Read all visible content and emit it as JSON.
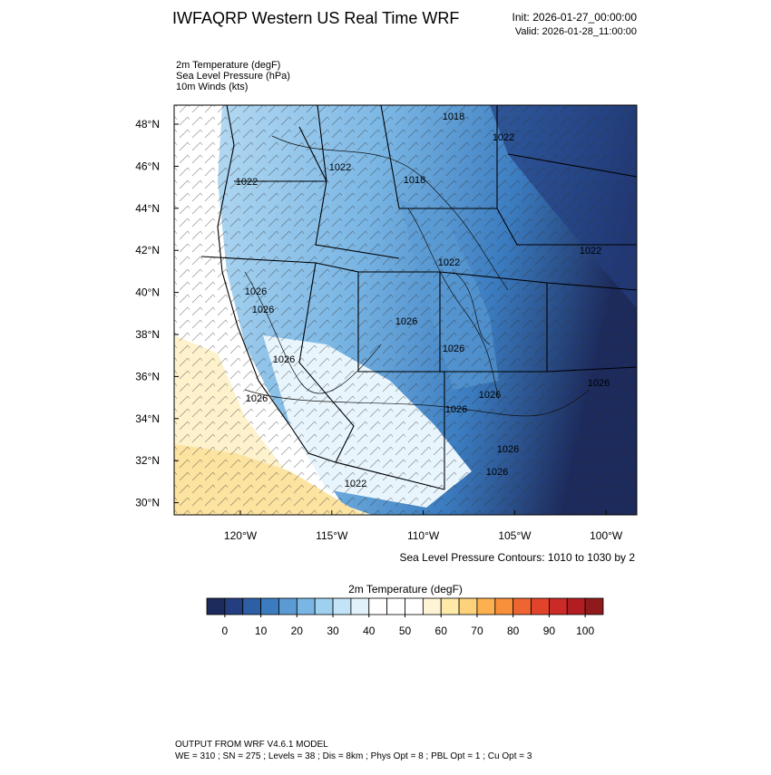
{
  "header": {
    "title": "IWFAQRP Western US Real Time WRF",
    "init": "Init: 2026-01-27_00:00:00",
    "valid": "Valid: 2026-01-28_11:00:00"
  },
  "fields": [
    "2m Temperature   (degF)",
    "Sea Level Pressure   (hPa)",
    "10m Winds   (kts)"
  ],
  "map": {
    "lat_labels": [
      "48°N",
      "46°N",
      "44°N",
      "42°N",
      "40°N",
      "38°N",
      "36°N",
      "34°N",
      "32°N",
      "30°N"
    ],
    "lon_labels": [
      "120°W",
      "115°W",
      "110°W",
      "105°W",
      "100°W"
    ],
    "contour_labels": [
      "1018",
      "1022",
      "1022",
      "1022",
      "1018",
      "1022",
      "1022",
      "1026",
      "1026",
      "1026",
      "1026",
      "1026",
      "1026",
      "1026",
      "1026",
      "1026",
      "1026",
      "1026",
      "1022"
    ],
    "contour_note": "Sea Level Pressure Contours: 1010 to 1030 by 2"
  },
  "colorbar": {
    "title": "2m Temperature  (degF)",
    "range": [
      -5,
      105
    ],
    "colors": [
      "#1c2a5c",
      "#233f80",
      "#2d5fa5",
      "#3b7cc0",
      "#5a9bd4",
      "#7ab6e4",
      "#a0d0f0",
      "#c3e3f6",
      "#e2f2fb",
      "#ffffff",
      "#ffffff",
      "#ffffff",
      "#fff5d6",
      "#fde9a8",
      "#fdd27a",
      "#fcb04f",
      "#f88f3a",
      "#ef6531",
      "#e2432b",
      "#cc2a26",
      "#b21d22",
      "#8f1a1c"
    ],
    "ticks": [
      0,
      10,
      20,
      30,
      40,
      50,
      60,
      70,
      80,
      90,
      100
    ]
  },
  "footer": [
    "OUTPUT FROM WRF V4.6.1 MODEL",
    "WE = 310 ; SN = 275 ; Levels = 38 ; Dis = 8km ; Phys Opt = 8 ; PBL Opt = 1 ; Cu Opt = 3"
  ]
}
